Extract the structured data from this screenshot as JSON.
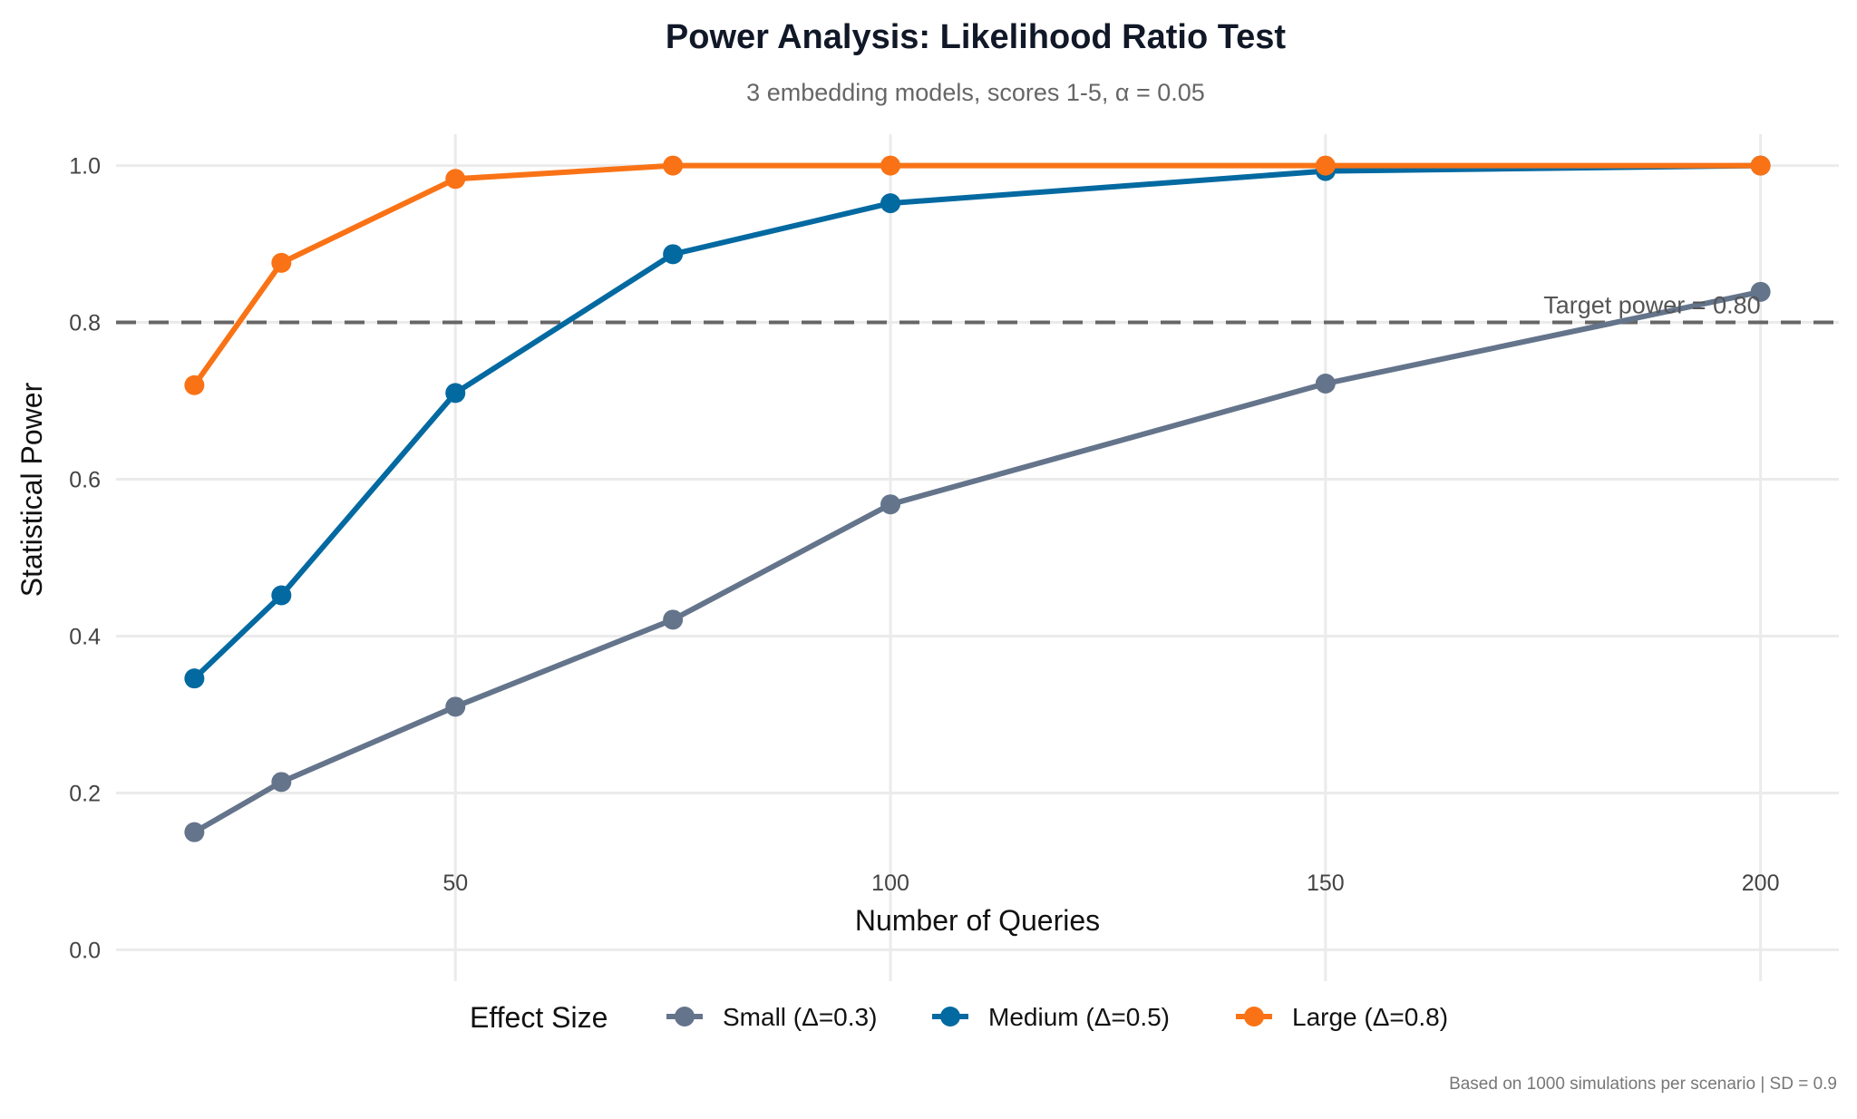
{
  "chart_data": {
    "type": "line",
    "title": "Power Analysis: Likelihood Ratio Test",
    "subtitle": "3 embedding models, scores 1-5, α = 0.05",
    "xlabel": "Number of Queries",
    "ylabel": "Statistical Power",
    "caption": "Based on 1000 simulations per scenario | SD = 0.9",
    "xlim": [
      11,
      209
    ],
    "ylim": [
      -0.04,
      1.04
    ],
    "x_ticks": [
      50,
      100,
      150,
      200
    ],
    "y_ticks": [
      0.0,
      0.2,
      0.4,
      0.6,
      0.8,
      1.0
    ],
    "y_tick_labels": [
      "0.0",
      "0.2",
      "0.4",
      "0.6",
      "0.8",
      "1.0"
    ],
    "grid": true,
    "x": [
      20,
      30,
      50,
      75,
      100,
      150,
      200
    ],
    "series": [
      {
        "name": "Small (Δ=0.3)",
        "color": "#64748b",
        "values": [
          0.15,
          0.214,
          0.31,
          0.421,
          0.568,
          0.722,
          0.839
        ]
      },
      {
        "name": "Medium (Δ=0.5)",
        "color": "#0369a1",
        "values": [
          0.346,
          0.452,
          0.71,
          0.887,
          0.952,
          0.993,
          1.0
        ]
      },
      {
        "name": "Large (Δ=0.8)",
        "color": "#f97316",
        "values": [
          0.72,
          0.876,
          0.983,
          1.0,
          1.0,
          1.0,
          1.0
        ]
      }
    ],
    "reference_line": {
      "y": 0.8,
      "label": "Target power = 0.80",
      "color": "#666666",
      "style": "dashed"
    },
    "legend": {
      "title": "Effect Size",
      "position": "bottom"
    }
  }
}
